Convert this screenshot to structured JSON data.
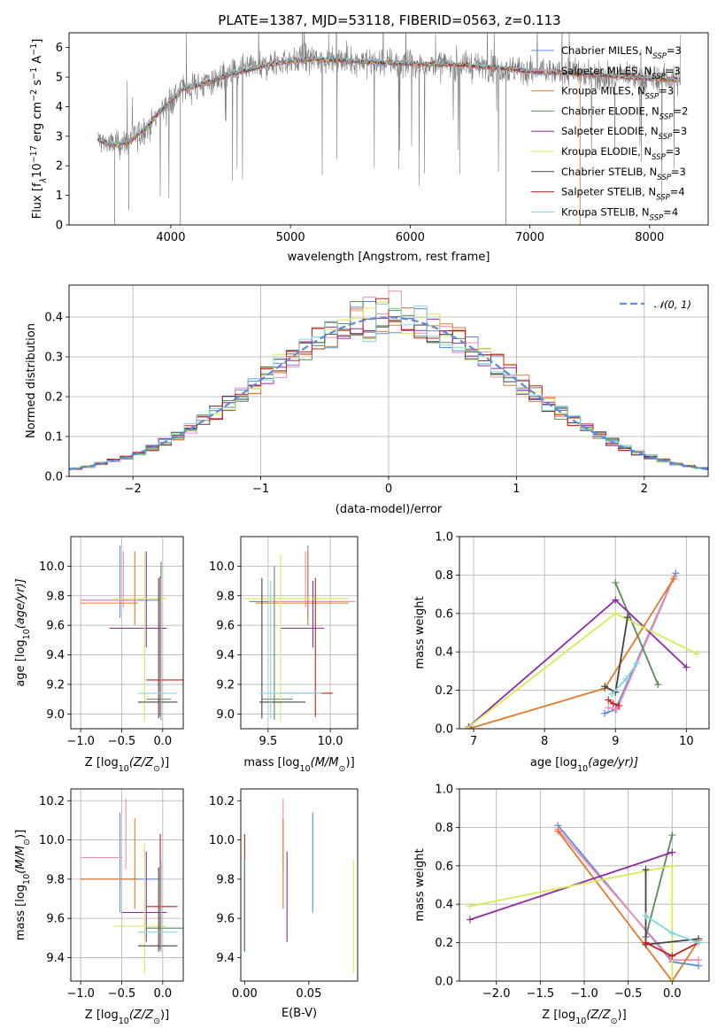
{
  "title": "PLATE=1387, MJD=53118, FIBERID=0563, z=0.113",
  "colors": {
    "blue": "#5b8bd9",
    "pink": "#f28cb4",
    "orange": "#e07a26",
    "green": "#5c8a5a",
    "purple": "#8f2aa8",
    "yellow": "#d6ec55",
    "black": "#444444",
    "red": "#c4201f",
    "cyan": "#84d6dd",
    "gray": "#7f7f7f",
    "norm": "#5b8bd9"
  },
  "series": [
    {
      "name": "Chabrier MILES",
      "nssp": "3",
      "color": "blue"
    },
    {
      "name": "Salpeter MILES",
      "nssp": "3",
      "color": "pink"
    },
    {
      "name": "Kroupa MILES",
      "nssp": "3",
      "color": "orange"
    },
    {
      "name": "Chabrier ELODIE",
      "nssp": "2",
      "color": "green"
    },
    {
      "name": "Salpeter ELODIE",
      "nssp": "3",
      "color": "purple"
    },
    {
      "name": "Kroupa ELODIE",
      "nssp": "3",
      "color": "yellow"
    },
    {
      "name": "Chabrier STELIB",
      "nssp": "3",
      "color": "black"
    },
    {
      "name": "Salpeter STELIB",
      "nssp": "4",
      "color": "red"
    },
    {
      "name": "Kroupa STELIB",
      "nssp": "4",
      "color": "cyan"
    }
  ],
  "chart_data": [
    {
      "id": "spectrum",
      "type": "line",
      "xlabel": "wavelength [Angstrom, rest frame]",
      "ylabel": "Flux [f$_\\lambda$10$^{-17}$ erg cm$^{-2}$ s$^{-1}$ A$^{-1}$]",
      "ylabel_main": "Flux [f",
      "ylabel_sub1": "λ",
      "ylabel_mid": "10",
      "ylabel_sup1": "−17",
      "ylabel_mid2": " erg cm",
      "ylabel_sup2": "−2",
      "ylabel_mid3": " s",
      "ylabel_sup3": "−1",
      "ylabel_mid4": " A",
      "ylabel_sup4": "−1",
      "ylabel_end": "]",
      "xlim": [
        3150,
        8490
      ],
      "ylim": [
        0,
        6.5
      ],
      "xticks": [
        4000,
        5000,
        6000,
        7000,
        8000
      ],
      "yticks": [
        0,
        1,
        2,
        3,
        4,
        5,
        6
      ],
      "legend": "right",
      "data_series": "observed",
      "data_range": [
        3390,
        8260
      ],
      "continuum": {
        "x": [
          3390,
          3500,
          3650,
          3800,
          3900,
          4000,
          4100,
          4300,
          4500,
          4800,
          5000,
          5200,
          5500,
          6000,
          6500,
          7000,
          7500,
          8000,
          8260
        ],
        "y": [
          2.9,
          2.7,
          2.8,
          3.3,
          3.8,
          4.2,
          4.6,
          4.8,
          5.1,
          5.4,
          5.55,
          5.6,
          5.55,
          5.45,
          5.4,
          5.2,
          5.1,
          4.95,
          4.9
        ]
      }
    },
    {
      "id": "residuals",
      "type": "histogram",
      "xlabel": "(data-model)/error",
      "ylabel": "Normed distribution",
      "xlim": [
        -2.5,
        2.5
      ],
      "ylim": [
        0,
        0.48
      ],
      "xticks": [
        -2,
        -1,
        0,
        1,
        2
      ],
      "yticks": [
        0.0,
        0.1,
        0.2,
        0.3,
        0.4
      ],
      "grid": true,
      "legend": "top-right",
      "normal_label": "𝒩(0, 1)",
      "bin_width": 0.1
    },
    {
      "id": "age_vs_Z",
      "type": "scatter-errorbar",
      "xlabel_main": "Z [log",
      "xlabel_sub": "10",
      "xlabel_rest": "(Z/Z",
      "xlabel_sub2": "⊙",
      "xlabel_end": ")]",
      "ylabel_main": "age  [log",
      "ylabel_sub": "10",
      "ylabel_rest": "(age/yr)]",
      "xlim": [
        -1.12,
        0.25
      ],
      "ylim": [
        8.9,
        10.2
      ],
      "xticks": [
        -1.0,
        -0.5,
        0.0
      ],
      "yticks": [
        9.0,
        9.2,
        9.4,
        9.6,
        9.8,
        10.0
      ],
      "grid": true,
      "points": [
        {
          "c": "blue",
          "x": -0.52,
          "y": 9.77,
          "ex": [
            -1.0,
            -0.05
          ],
          "ey": [
            9.65,
            10.14
          ]
        },
        {
          "c": "pink",
          "x": -0.48,
          "y": 9.77,
          "ex": [
            -1.0,
            -0.3
          ],
          "ey": [
            9.72,
            10.1
          ]
        },
        {
          "c": "orange",
          "x": -0.34,
          "y": 9.75,
          "ex": [
            -1.0,
            -0.3
          ],
          "ey": [
            9.6,
            10.1
          ]
        },
        {
          "c": "green",
          "x": -0.02,
          "y": 9.1,
          "ex": [
            -0.2,
            0.1
          ],
          "ey": [
            8.96,
            10.03
          ]
        },
        {
          "c": "purple",
          "x": -0.2,
          "y": 9.58,
          "ex": [
            -0.65,
            0.05
          ],
          "ey": [
            9.45,
            10.1
          ]
        },
        {
          "c": "yellow",
          "x": -0.22,
          "y": 9.78,
          "ex": [
            -0.6,
            0.05
          ],
          "ey": [
            8.95,
            10.1
          ]
        },
        {
          "c": "black",
          "x": -0.05,
          "y": 9.08,
          "ex": [
            -0.3,
            0.18
          ],
          "ey": [
            8.97,
            9.92
          ]
        },
        {
          "c": "red",
          "x": -0.03,
          "y": 9.23,
          "ex": [
            -0.2,
            0.25
          ],
          "ey": [
            8.98,
            9.93
          ]
        },
        {
          "c": "cyan",
          "x": -0.02,
          "y": 9.14,
          "ex": [
            -0.3,
            0.18
          ],
          "ey": [
            8.97,
            9.92
          ]
        }
      ]
    },
    {
      "id": "age_vs_mass",
      "type": "scatter-errorbar",
      "xlabel_main": "mass [log",
      "xlabel_sub": "10",
      "xlabel_rest": "(M/M",
      "xlabel_sub2": "⊙",
      "xlabel_end": ")]",
      "xlim": [
        9.28,
        10.22
      ],
      "ylim": [
        8.9,
        10.2
      ],
      "xticks": [
        9.5,
        10.0
      ],
      "yticks": [
        9.0,
        9.2,
        9.4,
        9.6,
        9.8,
        10.0
      ],
      "grid": true,
      "points": [
        {
          "c": "blue",
          "x": 9.82,
          "y": 9.76,
          "ex": [
            9.35,
            10.2
          ],
          "ey": [
            9.65,
            10.14
          ]
        },
        {
          "c": "pink",
          "x": 9.8,
          "y": 9.76,
          "ex": [
            9.5,
            10.2
          ],
          "ey": [
            9.72,
            10.1
          ]
        },
        {
          "c": "orange",
          "x": 9.82,
          "y": 9.75,
          "ex": [
            9.4,
            10.15
          ],
          "ey": [
            9.6,
            10.1
          ]
        },
        {
          "c": "green",
          "x": 9.55,
          "y": 9.1,
          "ex": [
            9.45,
            9.7
          ],
          "ey": [
            8.96,
            10.0
          ]
        },
        {
          "c": "purple",
          "x": 9.86,
          "y": 9.58,
          "ex": [
            9.6,
            9.95
          ],
          "ey": [
            9.45,
            9.9
          ]
        },
        {
          "c": "yellow",
          "x": 9.6,
          "y": 9.78,
          "ex": [
            9.3,
            10.15
          ],
          "ey": [
            8.95,
            10.08
          ]
        },
        {
          "c": "black",
          "x": 9.45,
          "y": 9.08,
          "ex": [
            9.43,
            9.8
          ],
          "ey": [
            8.97,
            9.92
          ]
        },
        {
          "c": "red",
          "x": 9.88,
          "y": 9.14,
          "ex": [
            9.6,
            10.02
          ],
          "ey": [
            8.98,
            9.92
          ]
        },
        {
          "c": "cyan",
          "x": 9.52,
          "y": 9.14,
          "ex": [
            9.43,
            9.93
          ],
          "ey": [
            8.97,
            9.9
          ]
        }
      ]
    },
    {
      "id": "massweight_vs_age",
      "type": "line",
      "xlabel_main": "age  [log",
      "xlabel_sub": "10",
      "xlabel_rest": "(age/yr)]",
      "ylabel": "mass weight",
      "xlim": [
        6.8,
        10.32
      ],
      "ylim": [
        0,
        1.0
      ],
      "xticks": [
        7,
        8,
        9,
        10
      ],
      "yticks": [
        0.0,
        0.2,
        0.4,
        0.6,
        0.8,
        1.0
      ],
      "grid": true,
      "lines": [
        {
          "c": "blue",
          "x": [
            8.85,
            9.0,
            9.85
          ],
          "y": [
            0.08,
            0.1,
            0.81
          ]
        },
        {
          "c": "pink",
          "x": [
            8.9,
            9.02,
            9.83
          ],
          "y": [
            0.11,
            0.1,
            0.79
          ]
        },
        {
          "c": "orange",
          "x": [
            6.93,
            8.85,
            9.82
          ],
          "y": [
            0.0,
            0.21,
            0.78
          ]
        },
        {
          "c": "green",
          "x": [
            9.0,
            9.6
          ],
          "y": [
            0.76,
            0.23
          ]
        },
        {
          "c": "purple",
          "x": [
            6.93,
            9.0,
            10.0
          ],
          "y": [
            0.01,
            0.67,
            0.32
          ]
        },
        {
          "c": "yellow",
          "x": [
            6.9,
            9.0,
            10.15
          ],
          "y": [
            0.0,
            0.6,
            0.39
          ]
        },
        {
          "c": "black",
          "x": [
            8.85,
            9.0,
            9.17
          ],
          "y": [
            0.22,
            0.19,
            0.58
          ]
        },
        {
          "c": "red",
          "x": [
            8.9,
            8.97,
            9.05
          ],
          "y": [
            0.15,
            0.13,
            0.12
          ]
        },
        {
          "c": "cyan",
          "x": [
            8.95,
            9.15,
            9.3
          ],
          "y": [
            0.18,
            0.26,
            0.34
          ]
        }
      ]
    },
    {
      "id": "mass_vs_Z",
      "type": "scatter-errorbar",
      "xlabel_main": "Z [log",
      "xlabel_sub": "10",
      "xlabel_rest": "(Z/Z",
      "xlabel_sub2": "⊙",
      "xlabel_end": ")]",
      "ylabel_main": "mass [log",
      "ylabel_sub": "10",
      "ylabel_rest": "(M/M",
      "ylabel_sub2": "⊙",
      "ylabel_end": ")]",
      "xlim": [
        -1.12,
        0.25
      ],
      "ylim": [
        9.28,
        10.26
      ],
      "xticks": [
        -1.0,
        -0.5,
        0.0
      ],
      "yticks": [
        9.4,
        9.6,
        9.8,
        10.0,
        10.2
      ],
      "grid": true,
      "points": [
        {
          "c": "blue",
          "x": -0.52,
          "y": 9.8,
          "ex": [
            -1.0,
            -0.05
          ],
          "ey": [
            9.63,
            10.14
          ]
        },
        {
          "c": "pink",
          "x": -0.45,
          "y": 9.91,
          "ex": [
            -1.0,
            -0.5
          ],
          "ey": [
            9.85,
            10.21
          ]
        },
        {
          "c": "orange",
          "x": -0.34,
          "y": 9.8,
          "ex": [
            -1.0,
            -0.3
          ],
          "ey": [
            9.65,
            10.11
          ]
        },
        {
          "c": "green",
          "x": -0.02,
          "y": 9.55,
          "ex": [
            -0.2,
            0.25
          ],
          "ey": [
            9.43,
            9.9
          ]
        },
        {
          "c": "purple",
          "x": -0.2,
          "y": 9.63,
          "ex": [
            -0.5,
            0.05
          ],
          "ey": [
            9.48,
            9.94
          ]
        },
        {
          "c": "yellow",
          "x": -0.22,
          "y": 9.56,
          "ex": [
            -0.6,
            0.05
          ],
          "ey": [
            9.32,
            9.98
          ]
        },
        {
          "c": "black",
          "x": -0.05,
          "y": 9.46,
          "ex": [
            -0.3,
            0.18
          ],
          "ey": [
            9.43,
            9.86
          ]
        },
        {
          "c": "red",
          "x": -0.03,
          "y": 9.66,
          "ex": [
            -0.2,
            0.18
          ],
          "ey": [
            9.44,
            10.03
          ]
        },
        {
          "c": "cyan",
          "x": -0.02,
          "y": 9.53,
          "ex": [
            -0.3,
            0.18
          ],
          "ey": [
            9.43,
            9.9
          ]
        }
      ]
    },
    {
      "id": "mass_vs_ebv",
      "type": "errorbar",
      "xlabel": "E(B-V)",
      "xlim": [
        -0.003,
        0.088
      ],
      "ylim": [
        9.28,
        10.26
      ],
      "xticks": [
        0.0,
        0.05
      ],
      "yticks": [
        9.4,
        9.6,
        9.8,
        10.0,
        10.2
      ],
      "grid": false,
      "points": [
        {
          "c": "blue",
          "x": 0.053,
          "ey": [
            9.63,
            10.14
          ]
        },
        {
          "c": "pink",
          "x": 0.03,
          "ey": [
            9.85,
            10.21
          ]
        },
        {
          "c": "orange",
          "x": 0.03,
          "ey": [
            9.65,
            10.11
          ]
        },
        {
          "c": "purple",
          "x": 0.033,
          "ey": [
            9.48,
            9.94
          ]
        },
        {
          "c": "yellow",
          "x": 0.085,
          "ey": [
            9.32,
            9.9
          ]
        },
        {
          "c": "black",
          "x": 0.0,
          "ey": [
            9.43,
            9.86
          ]
        },
        {
          "c": "red",
          "x": 0.0,
          "ey": [
            9.44,
            10.03
          ]
        },
        {
          "c": "cyan",
          "x": 0.0,
          "ey": [
            9.43,
            9.9
          ]
        },
        {
          "c": "green",
          "x": 0.0,
          "ey": [
            9.43,
            9.9
          ]
        }
      ]
    },
    {
      "id": "massweight_vs_Z",
      "type": "line",
      "xlabel_main": "Z [log",
      "xlabel_sub": "10",
      "xlabel_rest": "(Z/Z",
      "xlabel_sub2": "⊙",
      "xlabel_end": ")]",
      "ylabel": "mass weight",
      "xlim": [
        -2.42,
        0.42
      ],
      "ylim": [
        0,
        1.0
      ],
      "xticks": [
        -2.0,
        -1.5,
        -1.0,
        -0.5,
        0.0
      ],
      "yticks": [
        0.0,
        0.2,
        0.4,
        0.6,
        0.8,
        1.0
      ],
      "grid": true,
      "lines": [
        {
          "c": "blue",
          "x": [
            -1.3,
            0.0,
            0.3
          ],
          "y": [
            0.81,
            0.1,
            0.08
          ]
        },
        {
          "c": "pink",
          "x": [
            -1.3,
            0.0,
            0.3
          ],
          "y": [
            0.79,
            0.11,
            0.11
          ]
        },
        {
          "c": "orange",
          "x": [
            -1.3,
            0.0,
            0.3
          ],
          "y": [
            0.78,
            0.0,
            0.21
          ]
        },
        {
          "c": "green",
          "x": [
            0.0,
            -0.3
          ],
          "y": [
            0.76,
            0.23
          ]
        },
        {
          "c": "purple",
          "x": [
            -2.3,
            0.0
          ],
          "y": [
            0.32,
            0.67
          ]
        },
        {
          "c": "yellow",
          "x": [
            -2.3,
            0.0,
            0.0
          ],
          "y": [
            0.39,
            0.6,
            0.0
          ]
        },
        {
          "c": "black",
          "x": [
            -0.3,
            -0.3,
            0.3
          ],
          "y": [
            0.58,
            0.19,
            0.22
          ]
        },
        {
          "c": "red",
          "x": [
            -0.3,
            0.0,
            0.3
          ],
          "y": [
            0.2,
            0.13,
            0.2
          ]
        },
        {
          "c": "cyan",
          "x": [
            -0.3,
            0.0,
            0.3
          ],
          "y": [
            0.34,
            0.25,
            0.2
          ]
        }
      ]
    }
  ]
}
